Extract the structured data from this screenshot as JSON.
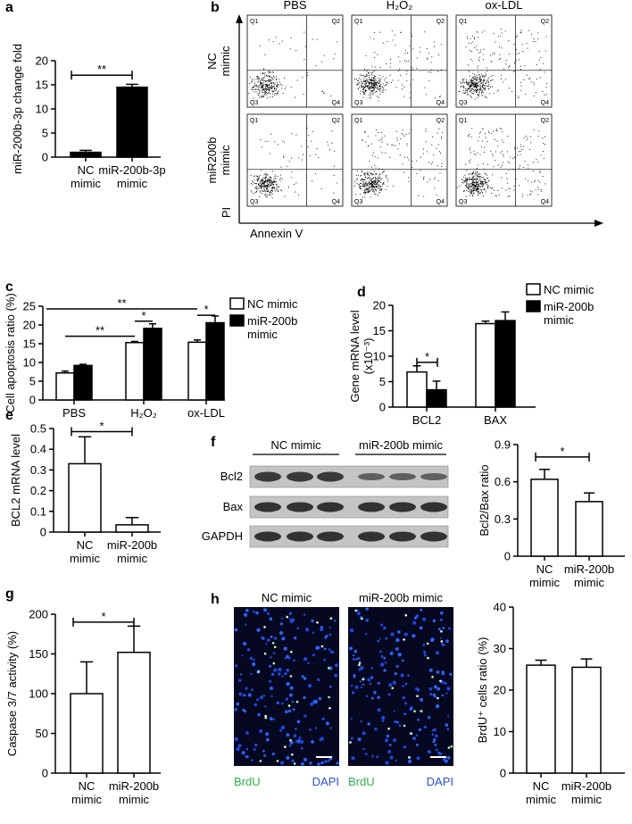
{
  "panel_labels": [
    "a",
    "b",
    "c",
    "d",
    "e",
    "f",
    "g",
    "h"
  ],
  "chart_data": [
    {
      "type": "bar",
      "y_label": "miR-200b-3p change fold",
      "categories": [
        "NC\nmimic",
        "miR-200b-3p\nmimic"
      ],
      "values": [
        1.0,
        14.5
      ],
      "errors": [
        0.4,
        0.6
      ],
      "color": "#000000",
      "ylim": [
        0,
        20
      ],
      "yticks": [
        0,
        5,
        10,
        15,
        20
      ],
      "annotations": [
        "**"
      ]
    },
    {
      "type": "grouped_bar",
      "y_label": "Cell apoptosis ratio (%)",
      "categories": [
        "PBS",
        "H₂O₂",
        "ox-LDL"
      ],
      "series": [
        {
          "name": "NC mimic",
          "color": "#ffffff",
          "values": [
            7.2,
            15.3,
            15.4
          ],
          "errors": [
            0.5,
            0.3,
            0.6
          ]
        },
        {
          "name": "miR-200b\nmimic",
          "color": "#000000",
          "values": [
            9.2,
            19.1,
            20.6
          ],
          "errors": [
            0.3,
            1.2,
            1.8
          ]
        }
      ],
      "ylim": [
        0,
        25
      ],
      "yticks": [
        0,
        5,
        10,
        15,
        20,
        25
      ],
      "annotations": [
        "**",
        "*",
        "**",
        "*"
      ]
    },
    {
      "type": "grouped_bar",
      "y_label": "Gene mRNA level\n(x10⁻³)",
      "categories": [
        "BCL2",
        "BAX"
      ],
      "series": [
        {
          "name": "NC mimic",
          "color": "#ffffff",
          "values": [
            6.9,
            16.4
          ],
          "errors": [
            1.2,
            0.5
          ]
        },
        {
          "name": "miR-200b\nmimic",
          "color": "#000000",
          "values": [
            3.4,
            17.0
          ],
          "errors": [
            1.7,
            1.7
          ]
        }
      ],
      "ylim": [
        0,
        20
      ],
      "yticks": [
        0,
        5,
        10,
        15,
        20
      ],
      "annotations": [
        "*"
      ]
    },
    {
      "type": "bar",
      "y_label": "BCL2 mRNA level",
      "categories": [
        "NC\nmimic",
        "miR-200b\nmimic"
      ],
      "values": [
        0.33,
        0.035
      ],
      "errors": [
        0.13,
        0.035
      ],
      "color": "#ffffff",
      "ylim": [
        0,
        0.5
      ],
      "yticks": [
        0,
        0.1,
        0.2,
        0.3,
        0.4,
        0.5
      ],
      "annotations": [
        "*"
      ]
    },
    {
      "type": "bar",
      "y_label": "Bcl2/Bax ratio",
      "categories": [
        "NC\nmimic",
        "miR-200b\nmimic"
      ],
      "values": [
        0.62,
        0.44
      ],
      "errors": [
        0.08,
        0.07
      ],
      "color": "#ffffff",
      "ylim": [
        0,
        0.9
      ],
      "yticks": [
        0,
        0.3,
        0.6,
        0.9
      ],
      "annotations": [
        "*"
      ]
    },
    {
      "type": "bar",
      "y_label": "Caspase 3/7 activity (%)",
      "categories": [
        "NC\nmimic",
        "miR-200b\nmimic"
      ],
      "values": [
        100,
        152
      ],
      "errors": [
        40,
        33
      ],
      "color": "#ffffff",
      "ylim": [
        0,
        200
      ],
      "yticks": [
        0,
        50,
        100,
        150,
        200
      ],
      "annotations": [
        "*"
      ]
    },
    {
      "type": "bar",
      "y_label": "BrdU⁺ cells ratio (%)",
      "categories": [
        "NC\nmimic",
        "miR-200b\nmimic"
      ],
      "values": [
        26,
        25.5
      ],
      "errors": [
        1.2,
        2.0
      ],
      "color": "#ffffff",
      "ylim": [
        0,
        40
      ],
      "yticks": [
        0,
        10,
        20,
        30,
        40
      ]
    }
  ],
  "flow_cytometry": {
    "columns": [
      "PBS",
      "H₂O₂",
      "ox-LDL"
    ],
    "rows": [
      "NC\nmimic",
      "miR200b\nmimic"
    ],
    "quadrants": [
      "Q1",
      "Q2",
      "Q3",
      "Q4"
    ],
    "x_label": "Annexin V",
    "y_label": "PI"
  },
  "western_blot": {
    "groups": [
      "NC mimic",
      "miR-200b mimic"
    ],
    "bands": [
      "Bcl2",
      "Bax",
      "GAPDH"
    ]
  },
  "microscopy": {
    "images": [
      "NC mimic",
      "miR-200b mimic"
    ],
    "stains": [
      "BrdU",
      "DAPI"
    ]
  }
}
